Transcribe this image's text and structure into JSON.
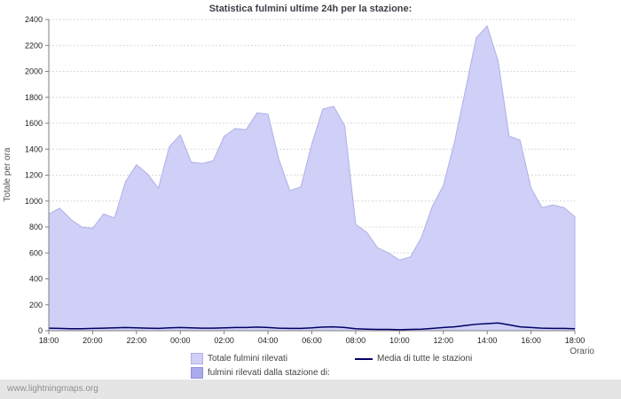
{
  "title": "Statistica fulmini ultime 24h per la stazione:",
  "watermark": "www.lightningmaps.org",
  "chart_data": {
    "type": "area",
    "title": "Statistica fulmini ultime 24h per la stazione:",
    "xlabel": "Orario",
    "ylabel": "Totale per ora",
    "ylim": [
      0,
      2400
    ],
    "ytick_step": 200,
    "grid": true,
    "legend_position": "bottom",
    "x_labels": [
      "18:00",
      "20:00",
      "22:00",
      "00:00",
      "02:00",
      "04:00",
      "06:00",
      "08:00",
      "10:00",
      "12:00",
      "14:00",
      "16:00",
      "18:00"
    ],
    "x_resolution_minutes": 30,
    "series": [
      {
        "name": "Totale fulmini rilevati",
        "kind": "area",
        "color": "#cfcff7",
        "edge_color": "#b0b0e8",
        "values": [
          900,
          945,
          860,
          800,
          790,
          900,
          870,
          1150,
          1280,
          1210,
          1100,
          1420,
          1510,
          1300,
          1290,
          1310,
          1500,
          1560,
          1550,
          1680,
          1670,
          1320,
          1080,
          1110,
          1440,
          1710,
          1730,
          1580,
          820,
          760,
          640,
          600,
          545,
          570,
          720,
          960,
          1120,
          1450,
          1850,
          2260,
          2350,
          2080,
          1500,
          1470,
          1100,
          950,
          970,
          950,
          880
        ]
      },
      {
        "name": "fulmini rilevati dalla stazione di:",
        "kind": "area",
        "color": "#a9a9ec",
        "edge_color": "#9090dd",
        "values": [
          0,
          0,
          0,
          0,
          0,
          0,
          0,
          0,
          0,
          0,
          0,
          0,
          0,
          0,
          0,
          0,
          0,
          0,
          0,
          0,
          0,
          0,
          0,
          0,
          0,
          0,
          0,
          0,
          0,
          0,
          0,
          0,
          0,
          0,
          0,
          0,
          0,
          0,
          0,
          0,
          0,
          0,
          0,
          0,
          0,
          0,
          0,
          0,
          0
        ]
      },
      {
        "name": "Media di tutte le stazioni",
        "kind": "line",
        "color": "#000066",
        "values": [
          20,
          18,
          15,
          15,
          18,
          20,
          22,
          25,
          22,
          20,
          18,
          22,
          25,
          22,
          20,
          20,
          22,
          25,
          25,
          28,
          25,
          20,
          18,
          18,
          22,
          28,
          30,
          25,
          15,
          12,
          10,
          10,
          8,
          10,
          12,
          18,
          25,
          30,
          40,
          50,
          55,
          60,
          45,
          30,
          25,
          20,
          18,
          18,
          15
        ]
      }
    ]
  }
}
